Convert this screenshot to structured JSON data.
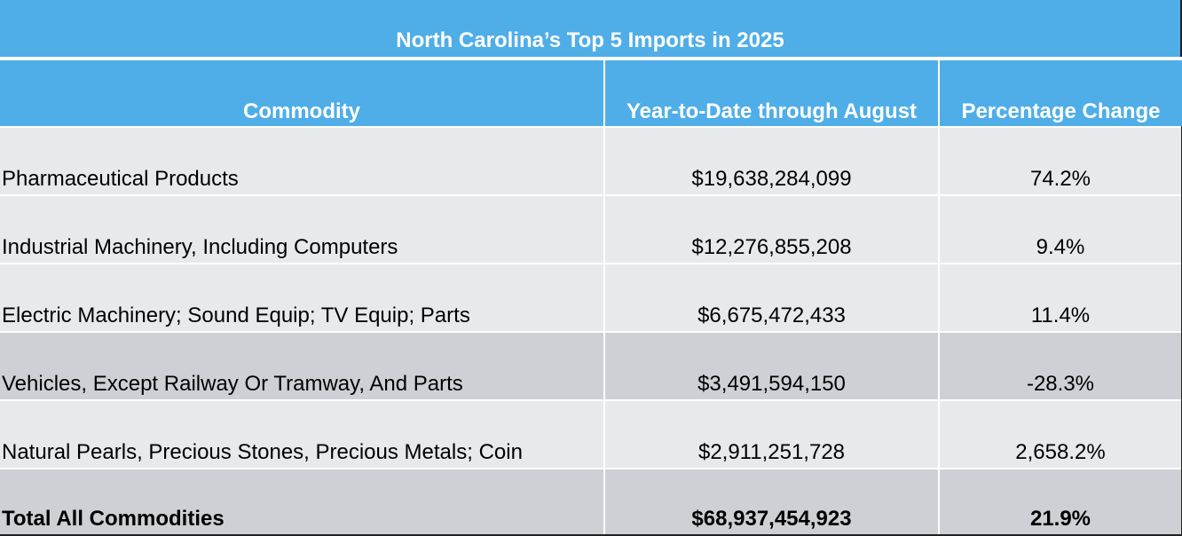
{
  "table": {
    "title": "North Carolina’s Top 5 Imports in 2025",
    "columns": [
      "Commodity",
      "Year-to-Date through August",
      "Percentage Change"
    ],
    "rows": [
      [
        "Pharmaceutical Products",
        "$19,638,284,099",
        "74.2%"
      ],
      [
        "Industrial Machinery, Including Computers",
        "$12,276,855,208",
        "9.4%"
      ],
      [
        "Electric Machinery; Sound Equip; TV Equip; Parts",
        "$6,675,472,433",
        "11.4%"
      ],
      [
        "Vehicles, Except Railway Or Tramway, And Parts",
        "$3,491,594,150",
        "-28.3%"
      ],
      [
        "Natural Pearls, Precious Stones, Precious Metals; Coin",
        "$2,911,251,728",
        "2,658.2%"
      ]
    ],
    "total": [
      "Total All Commodities",
      "$68,937,454,923",
      "21.9%"
    ]
  },
  "colors": {
    "header_bg": "#4faee8",
    "header_text": "#ffffff",
    "row_light": "#e7eaed",
    "row_dark": "#cdd1d5"
  }
}
